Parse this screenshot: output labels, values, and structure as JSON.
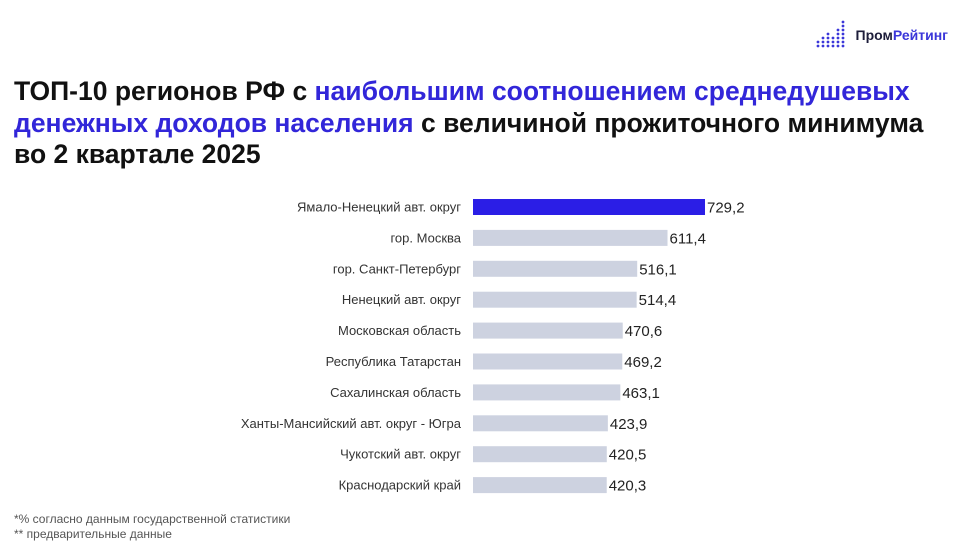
{
  "logo": {
    "part1": "Пром",
    "part2": "Рейтинг",
    "icon": "bar-dots-logo-icon"
  },
  "title": {
    "part1": "ТОП-10 регионов РФ с ",
    "highlight": "наибольшим соотношением среднедушевых денежных доходов населения",
    "part2": " с величиной прожиточного минимума во 2 квартале 2025"
  },
  "footnotes": {
    "note1": "*%  согласно данным государственной статистики",
    "note2": "** предварительные данные"
  },
  "chart_data": {
    "type": "bar",
    "orientation": "horizontal",
    "categories": [
      "Ямало-Ненецкий авт. округ",
      "гор. Москва",
      "гор. Санкт-Петербург",
      "Ненецкий авт. округ",
      "Московская область",
      "Республика Татарстан",
      "Сахалинская область",
      "Ханты-Мансийский авт. округ - Югра",
      "Чукотский авт. округ",
      "Краснодарский край"
    ],
    "values": [
      729.2,
      611.4,
      516.1,
      514.4,
      470.6,
      469.2,
      463.1,
      423.9,
      420.5,
      420.3
    ],
    "value_labels": [
      "729,2",
      "611,4",
      "516,1",
      "514,4",
      "470,6",
      "469,2",
      "463,1",
      "423,9",
      "420,5",
      "420,3"
    ],
    "highlight_index": 0,
    "colors": {
      "highlight": "#2b1ee6",
      "default": "#cdd2e0"
    },
    "grid": false,
    "legend": "none"
  }
}
